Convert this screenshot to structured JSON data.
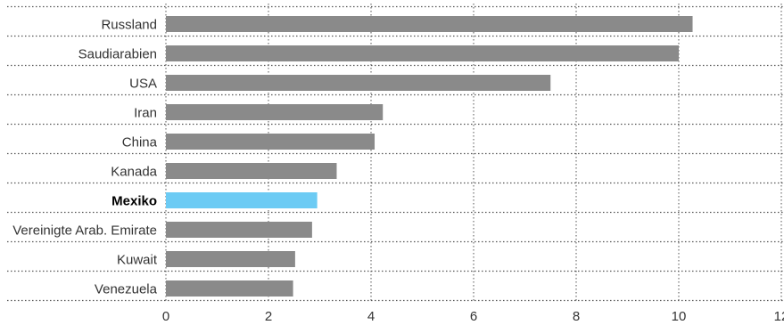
{
  "chart_data": {
    "type": "bar",
    "orientation": "horizontal",
    "categories": [
      "Russland",
      "Saudiarabien",
      "USA",
      "Iran",
      "China",
      "Kanada",
      "Mexiko",
      "Vereinigte Arab. Emirate",
      "Kuwait",
      "Venezuela"
    ],
    "values": [
      10.27,
      10.0,
      7.5,
      4.23,
      4.07,
      3.33,
      2.95,
      2.85,
      2.52,
      2.48
    ],
    "highlight": "Mexiko",
    "xlim": [
      0,
      12
    ],
    "xticks": [
      "0",
      "2",
      "4",
      "6",
      "8",
      "10",
      "12"
    ],
    "grid": true,
    "title": "",
    "xlabel": "",
    "ylabel": "",
    "colors": {
      "bar": "#8a8a8a",
      "highlight": "#6ccbf4",
      "grid": "#555555"
    }
  }
}
